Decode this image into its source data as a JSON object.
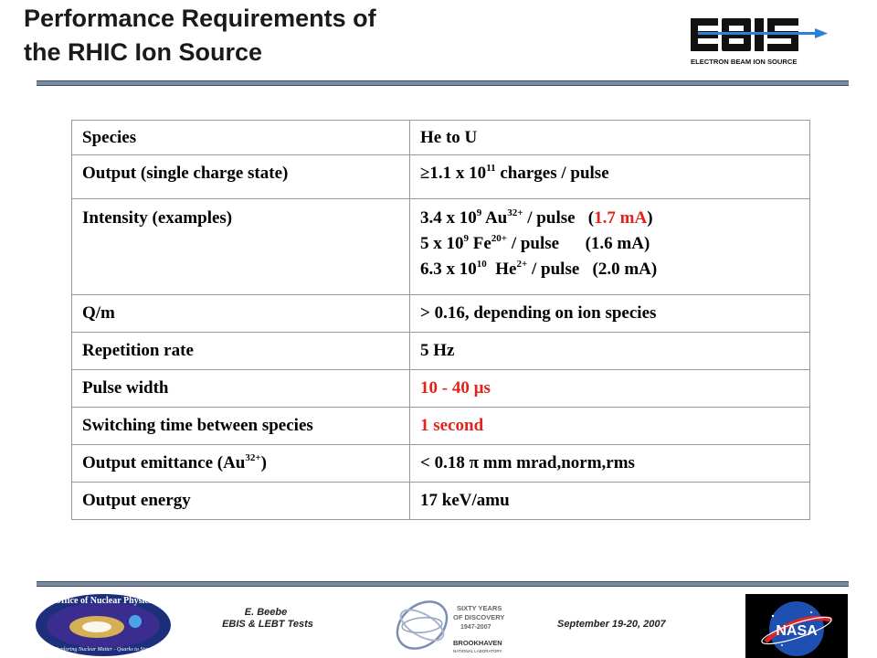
{
  "header": {
    "title_line1": "Performance Requirements of",
    "title_line2": "the RHIC Ion Source",
    "logo_text": "EBIS",
    "logo_caption": "ELECTRON BEAM ION SOURCE"
  },
  "table": {
    "rows": [
      {
        "param": "Species",
        "value": "He to U"
      },
      {
        "param": "Output (single charge state)",
        "value_a": "≥1.1 x 10",
        "value_sup": "11",
        "value_b": " charges / pulse"
      },
      {
        "param": "Intensity (examples)",
        "lines": [
          {
            "a": "3.4 x 10",
            "sup1": "9",
            "b": " Au",
            "sup2": "32+",
            "c": " / pulse   (",
            "hl": "1.7 mA",
            "d": ")"
          },
          {
            "a": "5 x 10",
            "sup1": "9",
            "b": " Fe",
            "sup2": "20+",
            "c": " / pulse      (1.6 mA)"
          },
          {
            "a": "6.3 x 10",
            "sup1": "10",
            "b": "  He",
            "sup2": "2+",
            "c": " / pulse   (2.0 mA)"
          }
        ]
      },
      {
        "param": "Q/m",
        "value": "> 0.16, depending on ion species"
      },
      {
        "param": "Repetition rate",
        "value": "5 Hz"
      },
      {
        "param": "Pulse width",
        "value": "10 - 40 µs"
      },
      {
        "param": "Switching time between species",
        "value": "1 second"
      },
      {
        "param_a": "Output emittance (Au",
        "param_sup": "32+",
        "param_b": ")",
        "value": "< 0.18 π mm mrad,norm,rms"
      },
      {
        "param": "Output energy",
        "value": "17 keV/amu"
      }
    ]
  },
  "footer": {
    "author": "E. Beebe",
    "talk": "EBIS & LEBT Tests",
    "date": "September 19-20, 2007",
    "left_logo_text": "Office of Nuclear Physics",
    "left_logo_motto": "Exploring Nuclear Matter - Quarks to Stars",
    "bnl_line1": "SIXTY YEARS",
    "bnl_line2": "OF DISCOVERY",
    "bnl_line3": "1947-2007",
    "bnl_line4": "BROOKHAVEN",
    "bnl_line5": "NATIONAL LABORATORY",
    "nasa_text": "NASA"
  },
  "colors": {
    "accent_red": "#e0241b",
    "rule": "#7a8aa3",
    "logo_blue": "#2f7fd6"
  }
}
